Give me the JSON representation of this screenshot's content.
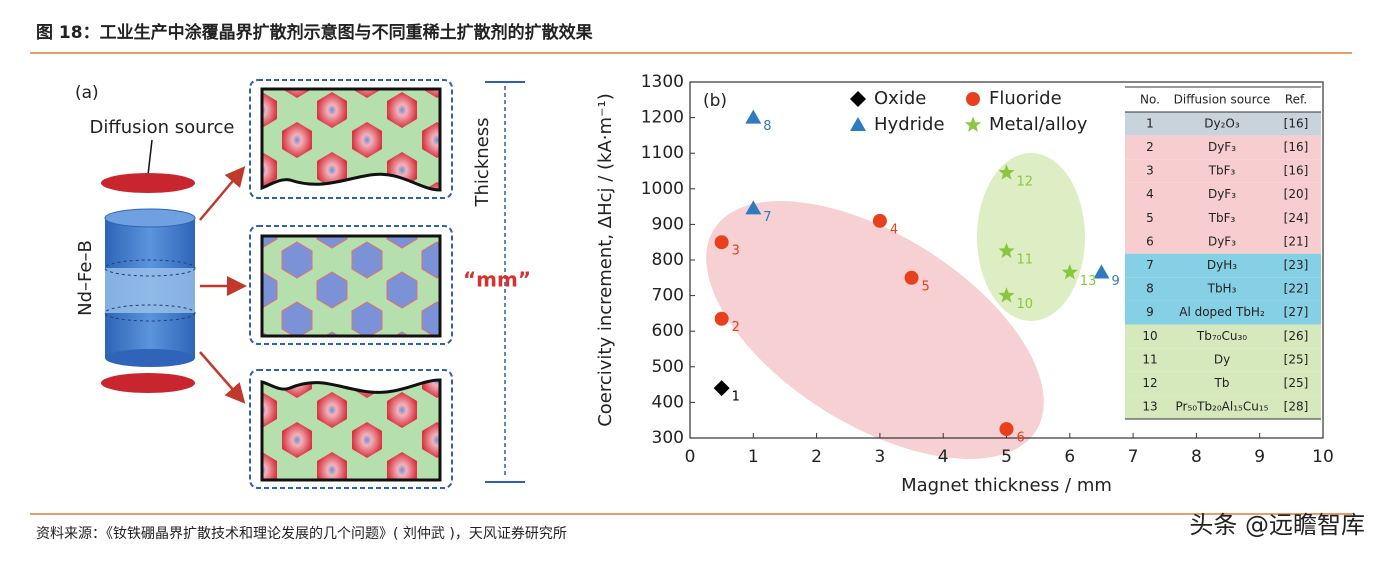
{
  "title": "图 18：工业生产中涂覆晶界扩散剂示意图与不同重稀土扩散剂的扩散效果",
  "source": "资料来源：《钕铁硼晶界扩散技术和理论发展的几个问题》( 刘仲武 )，天风证券研究所",
  "watermark": "头条 @远瞻智库",
  "panel_a": {
    "label": "(a)",
    "diffusion_source": "Diffusion source",
    "magnet": "Nd–Fe–B",
    "thickness": "Thickness",
    "unit": "“mm”"
  },
  "chart_data": {
    "type": "scatter",
    "panel_label": "(b)",
    "xlabel": "Magnet thickness / mm",
    "ylabel": "Coercivity increment, ΔHcj / (kA·m⁻¹)",
    "xlim": [
      0,
      10
    ],
    "xticks": [
      0,
      1,
      2,
      3,
      4,
      5,
      6,
      7,
      8,
      9,
      10
    ],
    "ylim": [
      300,
      1300
    ],
    "yticks": [
      300,
      400,
      500,
      600,
      700,
      800,
      900,
      1000,
      1100,
      1200,
      1300
    ],
    "series": [
      {
        "name": "Oxide",
        "color": "#000000",
        "marker": "diamond",
        "x": [
          0.5
        ],
        "values": [
          440
        ],
        "point_labels": [
          "1"
        ]
      },
      {
        "name": "Fluoride",
        "color": "#e8401c",
        "marker": "circle",
        "x": [
          0.5,
          0.5,
          3,
          3.5,
          5
        ],
        "values": [
          635,
          850,
          910,
          750,
          325
        ],
        "point_labels": [
          "2",
          "3",
          "4",
          "5",
          "6"
        ]
      },
      {
        "name": "Hydride",
        "color": "#2f7bbf",
        "marker": "triangle",
        "x": [
          1,
          1,
          6.5
        ],
        "values": [
          945,
          1200,
          765
        ],
        "point_labels": [
          "7",
          "8",
          "9"
        ]
      },
      {
        "name": "Metal/alloy",
        "color": "#8cc63f",
        "marker": "star",
        "x": [
          5,
          5,
          5,
          6
        ],
        "values": [
          700,
          825,
          1045,
          765
        ],
        "point_labels": [
          "10",
          "11",
          "12",
          "13"
        ]
      }
    ],
    "table": {
      "columns": [
        "No.",
        "Diffusion source",
        "Ref."
      ],
      "rows": [
        [
          "1",
          "Dy₂O₃",
          "[16]"
        ],
        [
          "2",
          "DyF₃",
          "[16]"
        ],
        [
          "3",
          "TbF₃",
          "[16]"
        ],
        [
          "4",
          "DyF₃",
          "[20]"
        ],
        [
          "5",
          "TbF₃",
          "[24]"
        ],
        [
          "6",
          "DyF₃",
          "[21]"
        ],
        [
          "7",
          "DyH₃",
          "[23]"
        ],
        [
          "8",
          "TbH₃",
          "[22]"
        ],
        [
          "9",
          "Al doped TbH₂",
          "[27]"
        ],
        [
          "10",
          "Tb₇₀Cu₃₀",
          "[26]"
        ],
        [
          "11",
          "Dy",
          "[25]"
        ],
        [
          "12",
          "Tb",
          "[25]"
        ],
        [
          "13",
          "Pr₅₀Tb₂₀Al₁₅Cu₁₅",
          "[28]"
        ]
      ],
      "row_colors": [
        "#c9d3dc",
        "#f8cdd0",
        "#f8cdd0",
        "#f8cdd0",
        "#f8cdd0",
        "#f8cdd0",
        "#86d0e6",
        "#86d0e6",
        "#86d0e6",
        "#d6e9bd",
        "#d6e9bd",
        "#d6e9bd",
        "#d6e9bd"
      ]
    }
  }
}
